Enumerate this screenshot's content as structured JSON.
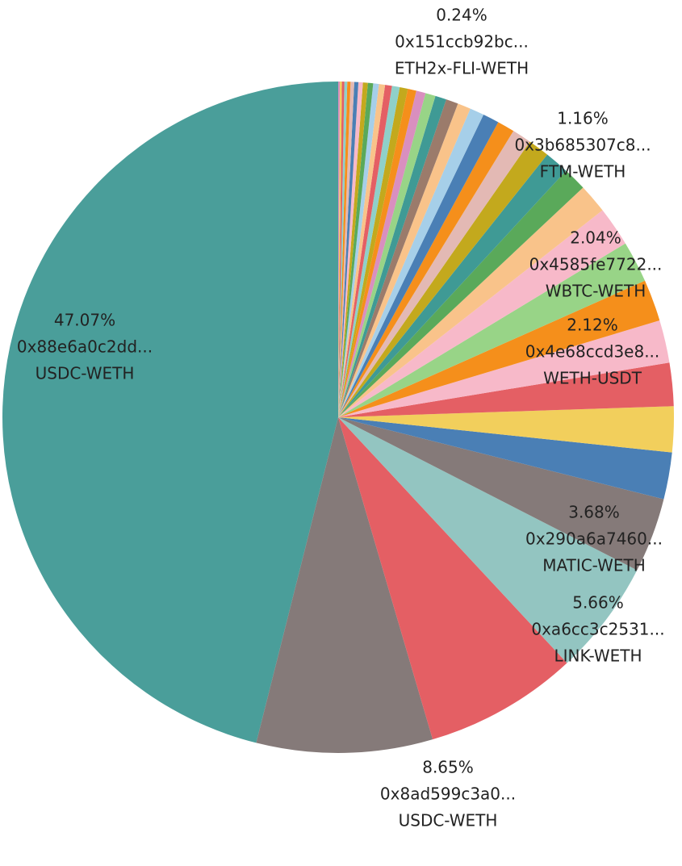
{
  "chart_data": {
    "type": "pie",
    "title": "",
    "slices": [
      {
        "value": 47.07,
        "color": "#4a9e9a",
        "labels": [
          "47.07%",
          "0x88e6a0c2dd...",
          "USDC-WETH"
        ]
      },
      {
        "value": 8.65,
        "color": "#857a79",
        "labels": [
          "8.65%",
          "0x8ad599c3a0...",
          "USDC-WETH"
        ]
      },
      {
        "value": 7.55,
        "color": "#e45f64"
      },
      {
        "value": 5.66,
        "color": "#93c5c1",
        "labels": [
          "5.66%",
          "0xa6cc3c2531...",
          "LINK-WETH"
        ]
      },
      {
        "value": 3.68,
        "color": "#857a79",
        "labels": [
          "3.68%",
          "0x290a6a7460...",
          "MATIC-WETH"
        ]
      },
      {
        "value": 2.3,
        "color": "#4a7fb5"
      },
      {
        "value": 2.25,
        "color": "#f2cf5c"
      },
      {
        "value": 2.12,
        "color": "#e45f64",
        "labels": [
          "2.12%",
          "0x4e68ccd3e8...",
          "WETH-USDT"
        ]
      },
      {
        "value": 2.1,
        "color": "#f7b9c9"
      },
      {
        "value": 2.05,
        "color": "#f58f1b"
      },
      {
        "value": 2.04,
        "color": "#98d487",
        "labels": [
          "2.04%",
          "0x4585fe7722...",
          "WBTC-WETH"
        ]
      },
      {
        "value": 1.95,
        "color": "#f7b9c9"
      },
      {
        "value": 1.45,
        "color": "#f9c38a"
      },
      {
        "value": 1.16,
        "color": "#5aa95a",
        "labels": [
          "1.16%",
          "0x3b685307c8...",
          "FTM-WETH"
        ]
      },
      {
        "value": 1.2,
        "color": "#3f9a95"
      },
      {
        "value": 1.05,
        "color": "#c3a91d"
      },
      {
        "value": 0.95,
        "color": "#e3b9b4"
      },
      {
        "value": 0.85,
        "color": "#f58f1b"
      },
      {
        "value": 0.8,
        "color": "#4a7fb5"
      },
      {
        "value": 0.7,
        "color": "#a6cfe9"
      },
      {
        "value": 0.65,
        "color": "#f9c38a"
      },
      {
        "value": 0.6,
        "color": "#9b7b6b"
      },
      {
        "value": 0.55,
        "color": "#3f9a95"
      },
      {
        "value": 0.5,
        "color": "#98d487"
      },
      {
        "value": 0.46,
        "color": "#d98fbf"
      },
      {
        "value": 0.42,
        "color": "#f58f1b"
      },
      {
        "value": 0.4,
        "color": "#c3a91d"
      },
      {
        "value": 0.38,
        "color": "#8fd0c9"
      },
      {
        "value": 0.34,
        "color": "#e45f64"
      },
      {
        "value": 0.3,
        "color": "#f9c38a"
      },
      {
        "value": 0.28,
        "color": "#a6cfe9"
      },
      {
        "value": 0.26,
        "color": "#5aa95a"
      },
      {
        "value": 0.24,
        "color": "#c3a91d",
        "labels": [
          "0.24%",
          "0x151ccb92bc...",
          "ETH2x-FLI-WETH"
        ]
      },
      {
        "value": 0.22,
        "color": "#f7b9c9"
      },
      {
        "value": 0.2,
        "color": "#4a7fb5"
      },
      {
        "value": 0.18,
        "color": "#e3b9b4"
      },
      {
        "value": 0.16,
        "color": "#f58f1b"
      },
      {
        "value": 0.14,
        "color": "#8fd0c9"
      },
      {
        "value": 0.12,
        "color": "#e45f64"
      },
      {
        "value": 0.1,
        "color": "#f2cf5c"
      },
      {
        "value": 0.08,
        "color": "#d98fbf"
      }
    ]
  }
}
